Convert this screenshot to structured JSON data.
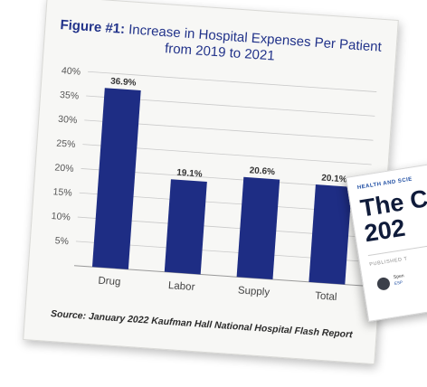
{
  "chart_data": {
    "type": "bar",
    "title_bold": "Figure #1:",
    "title": "Increase in Hospital Expenses Per Patient from 2019 to 2021",
    "categories": [
      "Drug",
      "Labor",
      "Supply",
      "Total"
    ],
    "values": [
      36.9,
      19.1,
      20.6,
      20.1
    ],
    "data_labels": [
      "36.9%",
      "19.1%",
      "20.6%",
      "20.1%"
    ],
    "yticks": [
      "5%",
      "10%",
      "15%",
      "20%",
      "25%",
      "30%",
      "35%",
      "40%"
    ],
    "ylim": [
      0,
      40
    ],
    "grid": true,
    "bar_color": "#1e2d84",
    "source": "Source: January 2022 Kaufman Hall National Hospital Flash Report"
  },
  "article": {
    "kicker": "HEALTH AND SCIE",
    "headline": "The C\n202",
    "published": "PUBLISHED T",
    "author": "Spen",
    "author_sub": "ESP"
  }
}
